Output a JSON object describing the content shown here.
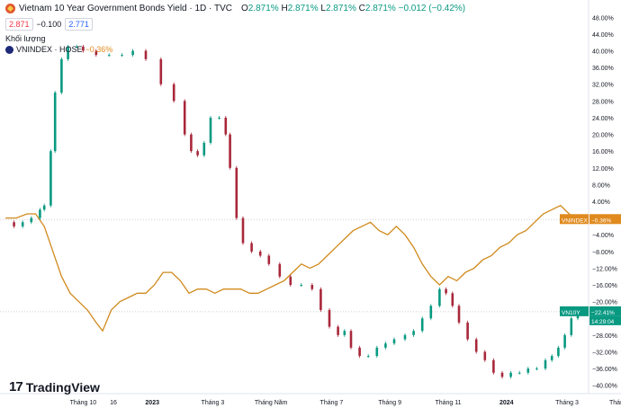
{
  "header": {
    "title": "Vietnam 10 Year Government Bonds Yield · 1D · TVC",
    "open_label": "O",
    "open": "2.871%",
    "high_label": "H",
    "high": "2.871%",
    "low_label": "L",
    "low": "2.871%",
    "close_label": "C",
    "close": "2.871%",
    "change": "−0.012 (−0.42%)"
  },
  "quote": {
    "sell": "2.871",
    "spread": "−0.100",
    "buy": "2.771"
  },
  "volume_label": "Khối lượng",
  "compare": {
    "name": "VNINDEX · HOSE",
    "change": "−0.36%"
  },
  "badges": {
    "vnindex_label": "VNINDEX",
    "vnindex_value": "−0.36%",
    "vn10y_label": "VN10Y",
    "vn10y_value": "−22.41%",
    "vn10y_time": "14:29:04"
  },
  "brand": "TradingView",
  "colors": {
    "up": "#089981",
    "down": "#a8273a",
    "compare_line": "#d08a1c",
    "badge_orange": "#e08a1e",
    "badge_green": "#089981"
  },
  "chart_data": {
    "type": "candlestick+line",
    "y_axis": {
      "unit": "%",
      "ticks": [
        48,
        44,
        40,
        36,
        32,
        28,
        24,
        20,
        16,
        12,
        8,
        4,
        0,
        -4,
        -8,
        -12,
        -16,
        -20,
        -24,
        -28,
        -32,
        -36,
        -40
      ],
      "tick_labels": [
        "48.00%",
        "44.00%",
        "40.00%",
        "36.00%",
        "32.00%",
        "28.00%",
        "24.00%",
        "20.00%",
        "16.00%",
        "12.00%",
        "8.00%",
        "4.00%",
        "0.00%",
        "−4.00%",
        "−8.00%",
        "−12.00%",
        "−16.00%",
        "−20.00%",
        "−24.00%",
        "−28.00%",
        "−32.00%",
        "−36.00%",
        "−40.00%"
      ],
      "range": [
        -42,
        50
      ]
    },
    "x_axis": {
      "range": [
        0,
        27
      ],
      "labels": [
        {
          "t": 3.6,
          "text": "Tháng 10",
          "bold": false
        },
        {
          "t": 5.0,
          "text": "16",
          "bold": false
        },
        {
          "t": 6.8,
          "text": "2023",
          "bold": true
        },
        {
          "t": 9.6,
          "text": "Tháng 3",
          "bold": false
        },
        {
          "t": 12.3,
          "text": "Tháng Năm",
          "bold": false
        },
        {
          "t": 15.1,
          "text": "Tháng 7",
          "bold": false
        },
        {
          "t": 17.8,
          "text": "Tháng 9",
          "bold": false
        },
        {
          "t": 20.5,
          "text": "Tháng 11",
          "bold": false
        },
        {
          "t": 23.2,
          "text": "2024",
          "bold": true
        },
        {
          "t": 26.0,
          "text": "Tháng 3",
          "bold": false
        },
        {
          "t": 28.6,
          "text": "Tháng Nă",
          "bold": false
        }
      ]
    },
    "series": [
      {
        "name": "VN10Y (normalized %)",
        "style": "candles",
        "points": [
          [
            0.0,
            -1
          ],
          [
            0.4,
            -2
          ],
          [
            0.8,
            -1
          ],
          [
            1.2,
            0
          ],
          [
            1.6,
            2
          ],
          [
            1.8,
            3
          ],
          [
            2.1,
            16
          ],
          [
            2.3,
            30
          ],
          [
            2.6,
            38
          ],
          [
            2.9,
            41
          ],
          [
            3.3,
            41
          ],
          [
            3.6,
            40
          ],
          [
            4.2,
            39
          ],
          [
            4.8,
            39
          ],
          [
            5.4,
            39
          ],
          [
            5.9,
            40
          ],
          [
            6.5,
            38
          ],
          [
            7.2,
            32
          ],
          [
            7.8,
            28
          ],
          [
            8.3,
            20
          ],
          [
            8.6,
            16
          ],
          [
            8.9,
            15
          ],
          [
            9.2,
            18
          ],
          [
            9.5,
            24
          ],
          [
            9.9,
            24
          ],
          [
            10.2,
            20
          ],
          [
            10.4,
            12
          ],
          [
            10.7,
            0
          ],
          [
            11.0,
            -6
          ],
          [
            11.4,
            -8
          ],
          [
            11.8,
            -9
          ],
          [
            12.2,
            -11
          ],
          [
            12.7,
            -14
          ],
          [
            13.2,
            -16
          ],
          [
            13.7,
            -16
          ],
          [
            14.2,
            -17
          ],
          [
            14.6,
            -22
          ],
          [
            15.0,
            -26
          ],
          [
            15.4,
            -28
          ],
          [
            15.7,
            -27
          ],
          [
            16.0,
            -31
          ],
          [
            16.4,
            -33
          ],
          [
            16.8,
            -33
          ],
          [
            17.2,
            -31
          ],
          [
            17.6,
            -30
          ],
          [
            18.0,
            -29
          ],
          [
            18.5,
            -28
          ],
          [
            18.9,
            -27
          ],
          [
            19.3,
            -24
          ],
          [
            19.7,
            -21
          ],
          [
            20.1,
            -17
          ],
          [
            20.4,
            -18
          ],
          [
            20.7,
            -21
          ],
          [
            21.0,
            -25
          ],
          [
            21.4,
            -29
          ],
          [
            21.8,
            -32
          ],
          [
            22.2,
            -34
          ],
          [
            22.6,
            -37
          ],
          [
            23.0,
            -38
          ],
          [
            23.4,
            -37
          ],
          [
            23.8,
            -37
          ],
          [
            24.2,
            -36
          ],
          [
            24.6,
            -36
          ],
          [
            25.0,
            -34
          ],
          [
            25.3,
            -33
          ],
          [
            25.6,
            -31
          ],
          [
            25.9,
            -28
          ],
          [
            26.2,
            -24
          ],
          [
            26.5,
            -22.4
          ]
        ]
      },
      {
        "name": "VNINDEX (normalized %)",
        "style": "line",
        "points": [
          [
            0.0,
            0
          ],
          [
            0.5,
            0
          ],
          [
            1.0,
            1
          ],
          [
            1.4,
            1
          ],
          [
            1.8,
            -2
          ],
          [
            2.2,
            -8
          ],
          [
            2.6,
            -14
          ],
          [
            3.0,
            -18
          ],
          [
            3.4,
            -20
          ],
          [
            3.8,
            -22
          ],
          [
            4.2,
            -25
          ],
          [
            4.5,
            -27
          ],
          [
            4.9,
            -22
          ],
          [
            5.3,
            -20
          ],
          [
            5.7,
            -19
          ],
          [
            6.1,
            -18
          ],
          [
            6.5,
            -18
          ],
          [
            6.9,
            -16
          ],
          [
            7.3,
            -13
          ],
          [
            7.7,
            -13
          ],
          [
            8.1,
            -15
          ],
          [
            8.5,
            -18
          ],
          [
            8.9,
            -17
          ],
          [
            9.3,
            -17
          ],
          [
            9.7,
            -18
          ],
          [
            10.1,
            -17
          ],
          [
            10.5,
            -17
          ],
          [
            10.9,
            -17
          ],
          [
            11.3,
            -18
          ],
          [
            11.7,
            -18
          ],
          [
            12.1,
            -17
          ],
          [
            12.5,
            -16
          ],
          [
            12.9,
            -15
          ],
          [
            13.3,
            -13
          ],
          [
            13.7,
            -11
          ],
          [
            14.1,
            -12
          ],
          [
            14.5,
            -11
          ],
          [
            14.9,
            -9
          ],
          [
            15.3,
            -7
          ],
          [
            15.7,
            -5
          ],
          [
            16.1,
            -3
          ],
          [
            16.5,
            -2
          ],
          [
            16.9,
            -1
          ],
          [
            17.3,
            -3
          ],
          [
            17.7,
            -4
          ],
          [
            18.1,
            -2
          ],
          [
            18.5,
            -4
          ],
          [
            18.9,
            -7
          ],
          [
            19.3,
            -11
          ],
          [
            19.7,
            -14
          ],
          [
            20.1,
            -16
          ],
          [
            20.5,
            -14
          ],
          [
            20.9,
            -15
          ],
          [
            21.3,
            -13
          ],
          [
            21.7,
            -12
          ],
          [
            22.1,
            -10
          ],
          [
            22.5,
            -9
          ],
          [
            22.9,
            -7
          ],
          [
            23.3,
            -6
          ],
          [
            23.7,
            -4
          ],
          [
            24.1,
            -3
          ],
          [
            24.5,
            -1
          ],
          [
            24.9,
            1
          ],
          [
            25.3,
            2
          ],
          [
            25.7,
            3
          ],
          [
            26.1,
            1
          ],
          [
            26.5,
            -0.36
          ]
        ]
      }
    ],
    "last_values": {
      "VNINDEX": -0.36,
      "VN10Y": -22.41
    }
  }
}
